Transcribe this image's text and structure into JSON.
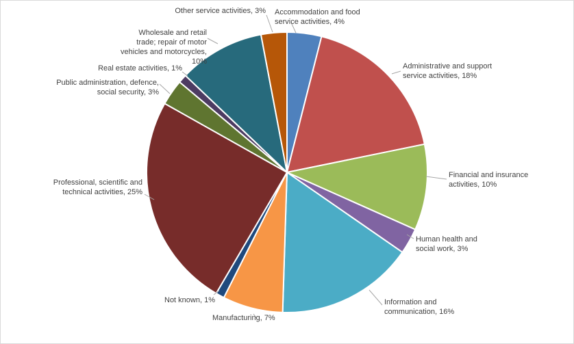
{
  "chart_data": {
    "type": "pie",
    "title": "",
    "categories": [
      "Accommodation and food service activities",
      "Administrative and support service activities",
      "Financial and insurance activities",
      "Human health and social work",
      "Information and communication",
      "Manufacturing",
      "Not known",
      "Professional, scientific and technical activities",
      "Public administration, defence, social security",
      "Real estate activities",
      "Wholesale and retail trade; repair of motor vehicles and motorcycles",
      "Other service activities"
    ],
    "values": [
      4,
      18,
      10,
      3,
      16,
      7,
      1,
      25,
      3,
      1,
      10,
      3
    ],
    "colors": [
      "#4f81bd",
      "#c0504d",
      "#9bbb59",
      "#8064a2",
      "#4bacc6",
      "#f79646",
      "#1f497d",
      "#772c2a",
      "#5f7530",
      "#4d3b62",
      "#276a7c",
      "#b65708"
    ],
    "labels": [
      [
        "Accommodation and food",
        "service activities, 4%"
      ],
      [
        "Administrative and support",
        "service activities, 18%"
      ],
      [
        "Financial and insurance",
        "activities, 10%"
      ],
      [
        "Human health and",
        "social work, 3%"
      ],
      [
        "Information and",
        "communication, 16%"
      ],
      [
        "Manufacturing, 7%"
      ],
      [
        "Not known, 1%"
      ],
      [
        "Professional, scientific and",
        "technical activities, 25%"
      ],
      [
        "Public administration, defence,",
        "social security, 3%"
      ],
      [
        "Real estate activities, 1%"
      ],
      [
        "Wholesale and retail",
        "trade; repair of motor",
        "vehicles and motorcycles,",
        "10%"
      ],
      [
        "Other service activities, 3%"
      ]
    ],
    "legend": "none"
  }
}
